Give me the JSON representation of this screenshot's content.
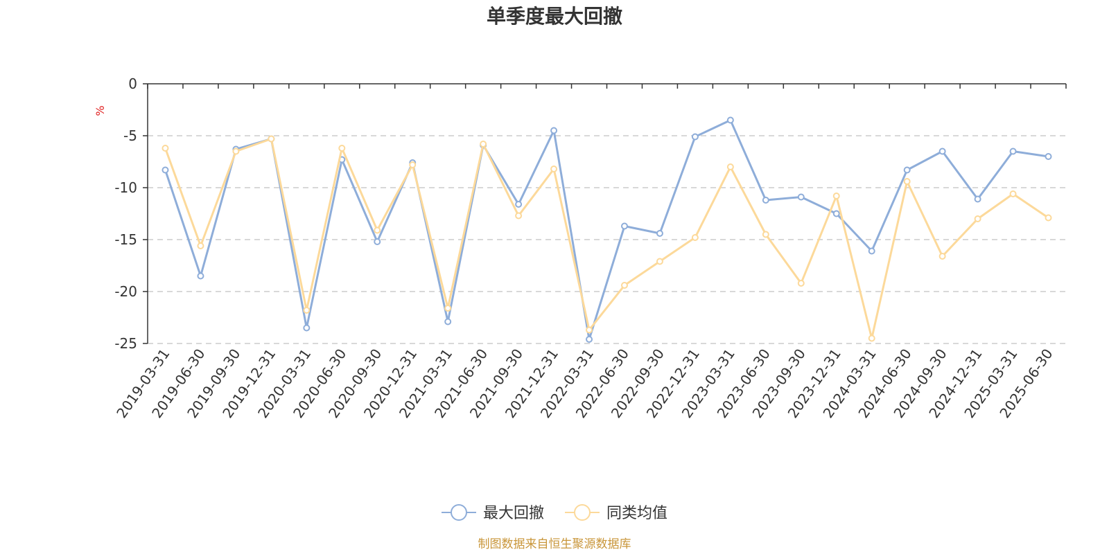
{
  "chart_data": {
    "type": "line",
    "title": "单季度最大回撤",
    "ylabel": "%",
    "xlabel": "",
    "ylim": [
      -25,
      0
    ],
    "yticks": [
      0,
      -5,
      -10,
      -15,
      -20,
      -25
    ],
    "grid": true,
    "legend_position": "bottom",
    "categories": [
      "2019-03-31",
      "2019-06-30",
      "2019-09-30",
      "2019-12-31",
      "2020-03-31",
      "2020-06-30",
      "2020-09-30",
      "2020-12-31",
      "2021-03-31",
      "2021-06-30",
      "2021-09-30",
      "2021-12-31",
      "2022-03-31",
      "2022-06-30",
      "2022-09-30",
      "2022-12-31",
      "2023-03-31",
      "2023-06-30",
      "2023-09-30",
      "2023-12-31",
      "2024-03-31",
      "2024-06-30",
      "2024-09-30",
      "2024-12-31",
      "2025-03-31",
      "2025-06-30"
    ],
    "series": [
      {
        "name": "最大回撤",
        "color": "#8eadd9",
        "values": [
          -8.3,
          -18.5,
          -6.3,
          -5.3,
          -23.5,
          -7.3,
          -15.2,
          -7.6,
          -22.9,
          -5.9,
          -11.6,
          -4.5,
          -24.6,
          -13.7,
          -14.4,
          -5.1,
          -3.5,
          -11.2,
          -10.9,
          -12.5,
          -16.1,
          -8.3,
          -6.5,
          -11.1,
          -6.5,
          -7.0
        ]
      },
      {
        "name": "同类均值",
        "color": "#fcd99a",
        "values": [
          -6.2,
          -15.6,
          -6.5,
          -5.3,
          -21.8,
          -6.2,
          -14.1,
          -7.8,
          -21.6,
          -5.8,
          -12.7,
          -8.2,
          -23.7,
          -19.4,
          -17.1,
          -14.8,
          -8.0,
          -14.5,
          -19.2,
          -10.8,
          -24.5,
          -9.4,
          -16.6,
          -13.0,
          -10.6,
          -12.9
        ]
      }
    ],
    "source_text": "制图数据来自恒生聚源数据库",
    "source_color": "#c9963a",
    "unit_color": "#e02020"
  }
}
